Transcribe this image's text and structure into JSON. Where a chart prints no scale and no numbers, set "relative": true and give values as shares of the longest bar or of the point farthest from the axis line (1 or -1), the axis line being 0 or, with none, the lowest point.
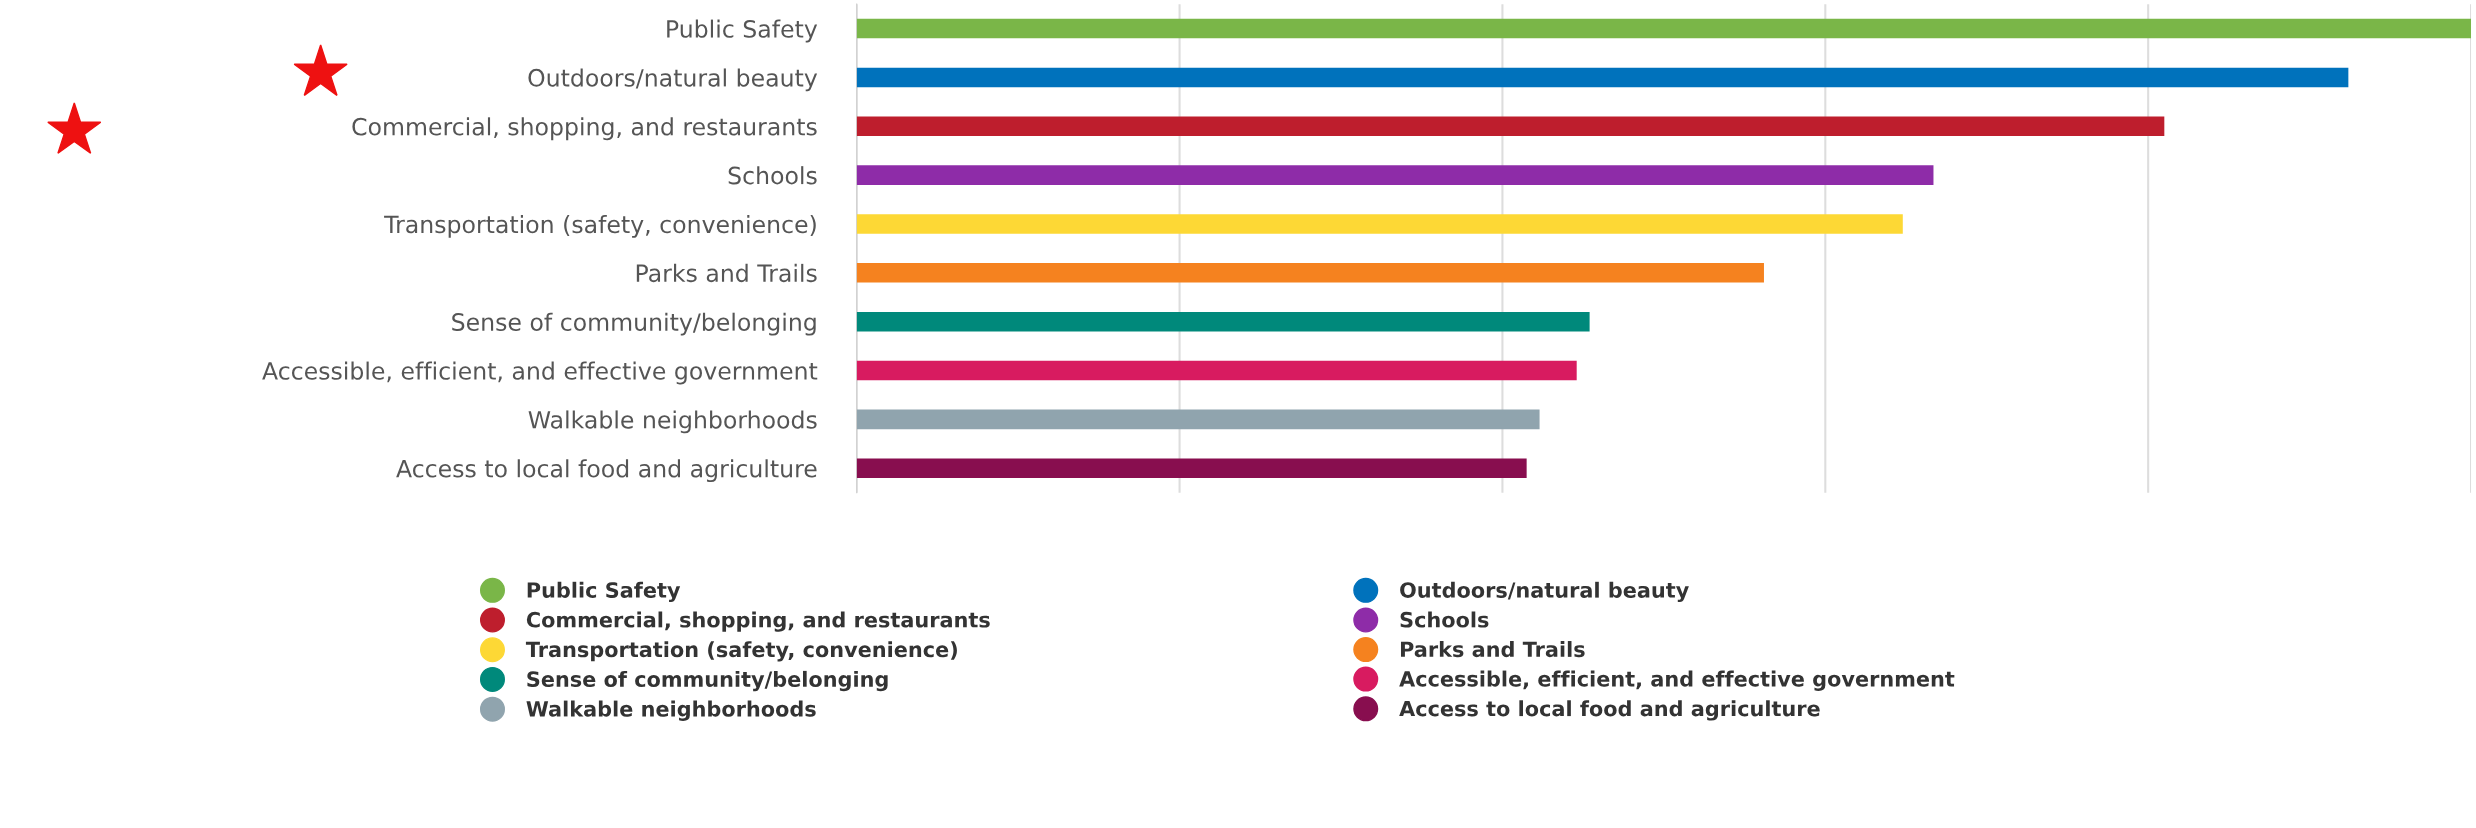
{
  "chart_data": {
    "type": "bar",
    "orientation": "horizontal",
    "relative": true,
    "grid": "x",
    "legend": "bottom",
    "categories": [
      "Public Safety",
      "Outdoors/natural beauty",
      "Commercial, shopping, and restaurants",
      "Schools",
      "Transportation (safety, convenience)",
      "Parks and Trails",
      "Sense of community/belonging",
      "Accessible, efficient, and effective government",
      "Walkable neighborhoods",
      "Access to local food and agriculture"
    ],
    "series": [
      {
        "name": "Public Safety",
        "color": "#7ab648",
        "values": [
          1,
          null,
          null,
          null,
          null,
          null,
          null,
          null,
          null,
          null
        ]
      },
      {
        "name": "Outdoors/natural beauty",
        "color": "#0072bc",
        "values": [
          null,
          0.924,
          null,
          null,
          null,
          null,
          null,
          null,
          null,
          null
        ]
      },
      {
        "name": "Commercial, shopping, and restaurants",
        "color": "#be1e2d",
        "values": [
          null,
          null,
          0.81,
          null,
          null,
          null,
          null,
          null,
          null,
          null
        ]
      },
      {
        "name": "Schools",
        "color": "#8e2ca8",
        "values": [
          null,
          null,
          null,
          0.667,
          null,
          null,
          null,
          null,
          null,
          null
        ]
      },
      {
        "name": "Transportation (safety, convenience)",
        "color": "#fdd835",
        "values": [
          null,
          null,
          null,
          null,
          0.648,
          null,
          null,
          null,
          null,
          null
        ]
      },
      {
        "name": "Parks and Trails",
        "color": "#f5821f",
        "values": [
          null,
          null,
          null,
          null,
          null,
          0.562,
          null,
          null,
          null,
          null
        ]
      },
      {
        "name": "Sense of community/belonging",
        "color": "#00897b",
        "values": [
          null,
          null,
          null,
          null,
          null,
          null,
          0.454,
          null,
          null,
          null
        ]
      },
      {
        "name": "Accessible, efficient, and effective government",
        "color": "#d81b60",
        "values": [
          null,
          null,
          null,
          null,
          null,
          null,
          null,
          0.446,
          null,
          null
        ]
      },
      {
        "name": "Walkable neighborhoods",
        "color": "#90a4ae",
        "values": [
          null,
          null,
          null,
          null,
          null,
          null,
          null,
          null,
          0.423,
          null
        ]
      },
      {
        "name": "Access to local food and agriculture",
        "color": "#880e4f",
        "values": [
          null,
          null,
          null,
          null,
          null,
          null,
          null,
          null,
          null,
          0.415
        ]
      }
    ]
  }
}
